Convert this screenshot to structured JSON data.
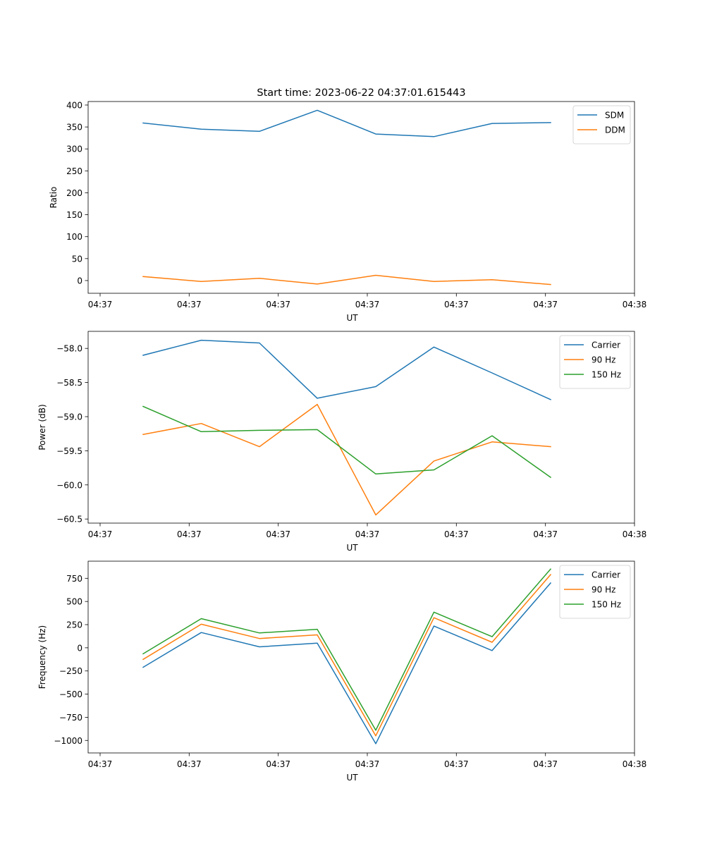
{
  "figure": {
    "title": "Start time: 2023-06-22 04:37:01.615443"
  },
  "colors": {
    "blue": "#1f77b4",
    "orange": "#ff7f0e",
    "green": "#2ca02c"
  },
  "chart_data": [
    {
      "type": "line",
      "title": "Start time: 2023-06-22 04:37:01.615443",
      "xlabel": "UT",
      "ylabel": "Ratio",
      "x_ticks": [
        "04:37",
        "04:37",
        "04:37",
        "04:37",
        "04:37",
        "04:37",
        "04:38"
      ],
      "y_ticks": [
        0,
        50,
        100,
        150,
        200,
        250,
        300,
        350,
        400
      ],
      "ylim": [
        -29,
        408
      ],
      "legend_position": "top-right",
      "grid": false,
      "series": [
        {
          "name": "SDM",
          "color": "#1f77b4",
          "values": [
            359,
            345,
            340,
            388,
            334,
            328,
            358,
            360
          ]
        },
        {
          "name": "DDM",
          "color": "#ff7f0e",
          "values": [
            9,
            -2,
            5,
            -8,
            12,
            -2,
            2,
            -9
          ]
        }
      ]
    },
    {
      "type": "line",
      "title": "",
      "xlabel": "UT",
      "ylabel": "Power (dB)",
      "x_ticks": [
        "04:37",
        "04:37",
        "04:37",
        "04:37",
        "04:37",
        "04:37",
        "04:38"
      ],
      "y_ticks": [
        -60.5,
        -60.0,
        -59.5,
        -59.0,
        -58.5,
        -58.0
      ],
      "y_tick_labels": [
        "−60.5",
        "−60.0",
        "−59.5",
        "−59.0",
        "−58.5",
        "−58.0"
      ],
      "ylim": [
        -60.56,
        -57.75
      ],
      "legend_position": "top-right",
      "grid": false,
      "series": [
        {
          "name": "Carrier",
          "color": "#1f77b4",
          "values": [
            -58.1,
            -57.88,
            -57.92,
            -58.73,
            -58.56,
            -57.98,
            -58.36,
            -58.75
          ]
        },
        {
          "name": "90 Hz",
          "color": "#ff7f0e",
          "values": [
            -59.26,
            -59.1,
            -59.44,
            -58.82,
            -60.44,
            -59.65,
            -59.37,
            -59.44
          ]
        },
        {
          "name": "150 Hz",
          "color": "#2ca02c",
          "values": [
            -58.85,
            -59.22,
            -59.2,
            -59.19,
            -59.84,
            -59.78,
            -59.28,
            -59.89
          ]
        }
      ]
    },
    {
      "type": "line",
      "title": "",
      "xlabel": "UT",
      "ylabel": "Frequency (Hz)",
      "x_ticks": [
        "04:37",
        "04:37",
        "04:37",
        "04:37",
        "04:37",
        "04:37",
        "04:38"
      ],
      "y_ticks": [
        -1000,
        -750,
        -500,
        -250,
        0,
        250,
        500,
        750
      ],
      "y_tick_labels": [
        "−1000",
        "−750",
        "−500",
        "−250",
        "0",
        "250",
        "500",
        "750"
      ],
      "ylim": [
        -1135,
        935
      ],
      "legend_position": "top-right",
      "grid": false,
      "series": [
        {
          "name": "Carrier",
          "color": "#1f77b4",
          "values": [
            -210,
            165,
            10,
            50,
            -1035,
            235,
            -30,
            700
          ]
        },
        {
          "name": "90 Hz",
          "color": "#ff7f0e",
          "values": [
            -125,
            255,
            100,
            140,
            -950,
            325,
            60,
            790
          ]
        },
        {
          "name": "150 Hz",
          "color": "#2ca02c",
          "values": [
            -65,
            315,
            160,
            200,
            -890,
            385,
            120,
            850
          ]
        }
      ]
    }
  ]
}
